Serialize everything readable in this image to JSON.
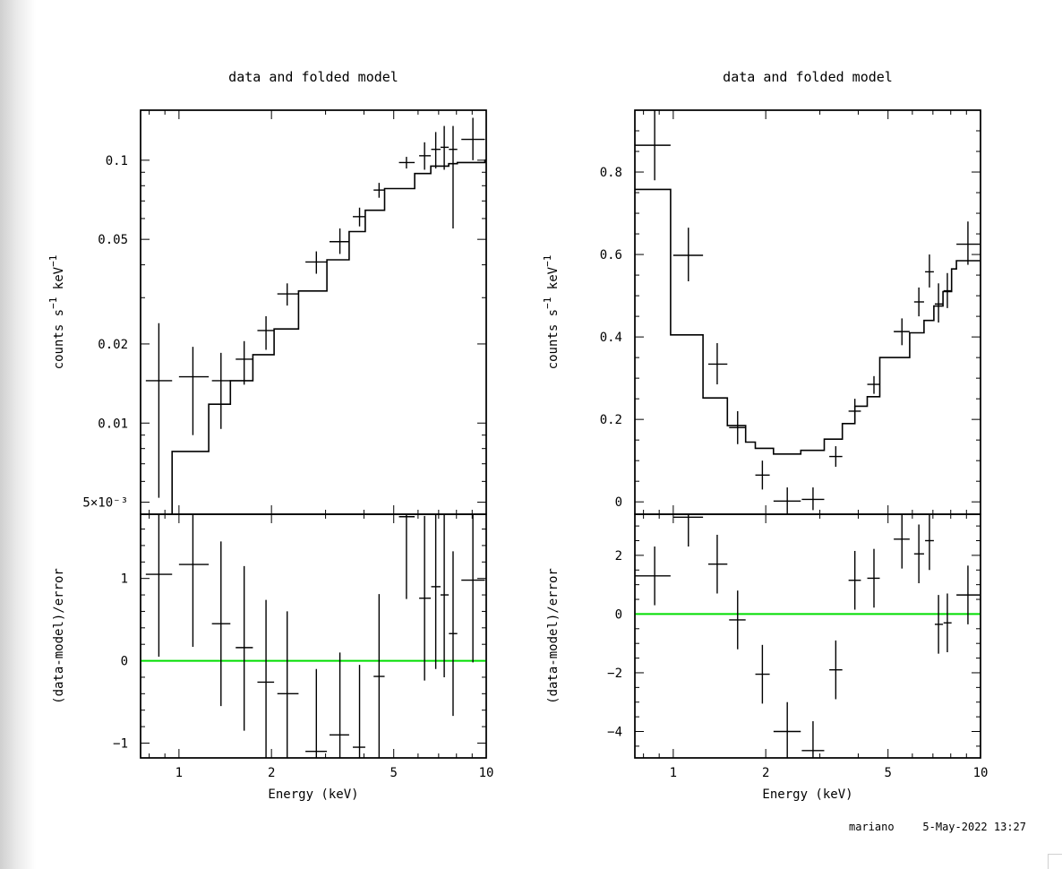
{
  "footer": {
    "user": "mariano",
    "timestamp": "5-May-2022 13:27"
  },
  "colors": {
    "axis": "#000000",
    "data": "#000000",
    "model": "#000000",
    "zero_line": "#00dd00"
  },
  "chart_data": [
    {
      "panel": "left",
      "type": "line",
      "title": "data and folded model",
      "xlabel": "Energy (keV)",
      "xscale": "log",
      "xlim": [
        0.75,
        10
      ],
      "xticklabels": [
        "1",
        "2",
        "5",
        "10"
      ],
      "top": {
        "ylabel": "counts s^-1 keV^-1",
        "yscale": "log",
        "ylim": [
          0.0045,
          0.155
        ],
        "yticklabels": [
          "5×10⁻³",
          "0.01",
          "0.02",
          "0.05",
          "0.1"
        ],
        "data": [
          {
            "x": 0.86,
            "xerr": [
              0.78,
              0.95
            ],
            "y": 0.0145,
            "yerr": [
              0.0052,
              0.024
            ]
          },
          {
            "x": 1.11,
            "xerr": [
              1.0,
              1.25
            ],
            "y": 0.015,
            "yerr": [
              0.009,
              0.0195
            ]
          },
          {
            "x": 1.37,
            "xerr": [
              1.28,
              1.47
            ],
            "y": 0.0145,
            "yerr": [
              0.0095,
              0.0185
            ]
          },
          {
            "x": 1.63,
            "xerr": [
              1.53,
              1.74
            ],
            "y": 0.0175,
            "yerr": [
              0.014,
              0.0205
            ]
          },
          {
            "x": 1.92,
            "xerr": [
              1.8,
              2.04
            ],
            "y": 0.0225,
            "yerr": [
              0.019,
              0.0255
            ]
          },
          {
            "x": 2.25,
            "xerr": [
              2.09,
              2.45
            ],
            "y": 0.031,
            "yerr": [
              0.028,
              0.034
            ]
          },
          {
            "x": 2.8,
            "xerr": [
              2.58,
              3.03
            ],
            "y": 0.041,
            "yerr": [
              0.037,
              0.045
            ]
          },
          {
            "x": 3.34,
            "xerr": [
              3.09,
              3.58
            ],
            "y": 0.049,
            "yerr": [
              0.044,
              0.055
            ]
          },
          {
            "x": 3.87,
            "xerr": [
              3.68,
              4.04
            ],
            "y": 0.061,
            "yerr": [
              0.056,
              0.066
            ]
          },
          {
            "x": 4.48,
            "xerr": [
              4.3,
              4.67
            ],
            "y": 0.077,
            "yerr": [
              0.072,
              0.082
            ]
          },
          {
            "x": 5.5,
            "xerr": [
              5.2,
              5.85
            ],
            "y": 0.098,
            "yerr": [
              0.093,
              0.103
            ]
          },
          {
            "x": 6.3,
            "xerr": [
              6.05,
              6.6
            ],
            "y": 0.104,
            "yerr": [
              0.092,
              0.117
            ]
          },
          {
            "x": 6.85,
            "xerr": [
              6.62,
              7.1
            ],
            "y": 0.11,
            "yerr": [
              0.093,
              0.128
            ]
          },
          {
            "x": 7.3,
            "xerr": [
              7.1,
              7.55
            ],
            "y": 0.112,
            "yerr": [
              0.092,
              0.135
            ]
          },
          {
            "x": 7.8,
            "xerr": [
              7.56,
              8.05
            ],
            "y": 0.11,
            "yerr": [
              0.055,
              0.135
            ]
          },
          {
            "x": 9.05,
            "xerr": [
              8.3,
              9.9
            ],
            "y": 0.12,
            "yerr": [
              0.1,
              0.145
            ]
          }
        ],
        "model": {
          "edges": [
            0.75,
            0.85,
            0.95,
            1.25,
            1.47,
            1.74,
            2.04,
            2.45,
            3.03,
            3.58,
            4.04,
            4.67,
            5.85,
            6.6,
            7.55,
            8.05,
            9.9,
            10
          ],
          "values": [
            0.0042,
            0.0042,
            0.0078,
            0.0118,
            0.0145,
            0.0182,
            0.0228,
            0.0318,
            0.0418,
            0.0535,
            0.0645,
            0.078,
            0.089,
            0.095,
            0.097,
            0.098,
            0.1
          ]
        }
      },
      "bottom": {
        "ylabel": "(data-model)/error",
        "ylim": [
          -1.18,
          1.78
        ],
        "yticklabels": [
          "−1",
          "0",
          "1"
        ],
        "zero_line": 0,
        "data": [
          {
            "x": 0.86,
            "xerr": [
              0.78,
              0.95
            ],
            "y": 1.05,
            "yerr": [
              0.05,
              2.0
            ]
          },
          {
            "x": 1.11,
            "xerr": [
              1.0,
              1.25
            ],
            "y": 1.17,
            "yerr": [
              0.17,
              2.0
            ]
          },
          {
            "x": 1.37,
            "xerr": [
              1.28,
              1.47
            ],
            "y": 0.45,
            "yerr": [
              -0.55,
              1.45
            ]
          },
          {
            "x": 1.63,
            "xerr": [
              1.53,
              1.74
            ],
            "y": 0.16,
            "yerr": [
              -0.85,
              1.15
            ]
          },
          {
            "x": 1.92,
            "xerr": [
              1.8,
              2.04
            ],
            "y": -0.26,
            "yerr": [
              -1.25,
              0.74
            ]
          },
          {
            "x": 2.25,
            "xerr": [
              2.09,
              2.45
            ],
            "y": -0.4,
            "yerr": [
              -1.4,
              0.6
            ]
          },
          {
            "x": 2.8,
            "xerr": [
              2.58,
              3.03
            ],
            "y": -1.1,
            "yerr": [
              -2.1,
              -0.1
            ]
          },
          {
            "x": 3.34,
            "xerr": [
              3.09,
              3.58
            ],
            "y": -0.9,
            "yerr": [
              -1.9,
              0.1
            ]
          },
          {
            "x": 3.87,
            "xerr": [
              3.68,
              4.04
            ],
            "y": -1.05,
            "yerr": [
              -2.05,
              -0.05
            ]
          },
          {
            "x": 4.48,
            "xerr": [
              4.3,
              4.67
            ],
            "y": -0.19,
            "yerr": [
              -1.19,
              0.81
            ]
          },
          {
            "x": 5.5,
            "xerr": [
              5.2,
              5.85
            ],
            "y": 1.75,
            "yerr": [
              0.75,
              2.75
            ]
          },
          {
            "x": 6.3,
            "xerr": [
              6.05,
              6.6
            ],
            "y": 0.76,
            "yerr": [
              -0.24,
              1.76
            ]
          },
          {
            "x": 6.85,
            "xerr": [
              6.62,
              7.1
            ],
            "y": 0.9,
            "yerr": [
              -0.1,
              1.9
            ]
          },
          {
            "x": 7.3,
            "xerr": [
              7.1,
              7.55
            ],
            "y": 0.8,
            "yerr": [
              -0.2,
              1.8
            ]
          },
          {
            "x": 7.8,
            "xerr": [
              7.56,
              8.05
            ],
            "y": 0.33,
            "yerr": [
              -0.67,
              1.33
            ]
          },
          {
            "x": 9.05,
            "xerr": [
              8.3,
              9.9
            ],
            "y": 0.98,
            "yerr": [
              -0.02,
              1.98
            ]
          }
        ]
      }
    },
    {
      "panel": "right",
      "type": "line",
      "title": "data and folded model",
      "xlabel": "Energy (keV)",
      "xscale": "log",
      "xlim": [
        0.75,
        10
      ],
      "xticklabels": [
        "1",
        "2",
        "5",
        "10"
      ],
      "top": {
        "ylabel": "counts s^-1 keV^-1",
        "yscale": "linear",
        "ylim": [
          -0.03,
          0.95
        ],
        "yticklabels": [
          "0",
          "0.2",
          "0.4",
          "0.6",
          "0.8"
        ],
        "data": [
          {
            "x": 0.87,
            "xerr": [
              0.75,
              0.98
            ],
            "y": 0.865,
            "yerr": [
              0.78,
              0.95
            ]
          },
          {
            "x": 1.12,
            "xerr": [
              1.0,
              1.25
            ],
            "y": 0.598,
            "yerr": [
              0.535,
              0.665
            ]
          },
          {
            "x": 1.39,
            "xerr": [
              1.3,
              1.5
            ],
            "y": 0.334,
            "yerr": [
              0.285,
              0.385
            ]
          },
          {
            "x": 1.62,
            "xerr": [
              1.52,
              1.72
            ],
            "y": 0.18,
            "yerr": [
              0.14,
              0.22
            ]
          },
          {
            "x": 1.95,
            "xerr": [
              1.85,
              2.06
            ],
            "y": 0.065,
            "yerr": [
              0.03,
              0.1
            ]
          },
          {
            "x": 2.35,
            "xerr": [
              2.12,
              2.6
            ],
            "y": 0.002,
            "yerr": [
              -0.03,
              0.035
            ]
          },
          {
            "x": 2.85,
            "xerr": [
              2.62,
              3.1
            ],
            "y": 0.006,
            "yerr": [
              -0.02,
              0.035
            ]
          },
          {
            "x": 3.38,
            "xerr": [
              3.22,
              3.55
            ],
            "y": 0.11,
            "yerr": [
              0.085,
              0.135
            ]
          },
          {
            "x": 3.9,
            "xerr": [
              3.72,
              4.08
            ],
            "y": 0.22,
            "yerr": [
              0.19,
              0.25
            ]
          },
          {
            "x": 4.5,
            "xerr": [
              4.28,
              4.7
            ],
            "y": 0.285,
            "yerr": [
              0.262,
              0.305
            ]
          },
          {
            "x": 5.55,
            "xerr": [
              5.22,
              5.88
            ],
            "y": 0.413,
            "yerr": [
              0.38,
              0.445
            ]
          },
          {
            "x": 6.3,
            "xerr": [
              6.08,
              6.55
            ],
            "y": 0.485,
            "yerr": [
              0.45,
              0.52
            ]
          },
          {
            "x": 6.82,
            "xerr": [
              6.6,
              7.05
            ],
            "y": 0.558,
            "yerr": [
              0.52,
              0.6
            ]
          },
          {
            "x": 7.3,
            "xerr": [
              7.1,
              7.55
            ],
            "y": 0.48,
            "yerr": [
              0.435,
              0.53
            ]
          },
          {
            "x": 7.8,
            "xerr": [
              7.58,
              8.05
            ],
            "y": 0.512,
            "yerr": [
              0.47,
              0.555
            ]
          },
          {
            "x": 9.1,
            "xerr": [
              8.35,
              9.95
            ],
            "y": 0.625,
            "yerr": [
              0.575,
              0.68
            ]
          }
        ],
        "model": {
          "edges": [
            0.75,
            0.98,
            1.25,
            1.5,
            1.72,
            1.85,
            2.12,
            2.6,
            3.1,
            3.55,
            3.9,
            4.28,
            4.7,
            5.88,
            6.55,
            7.05,
            7.55,
            8.05,
            8.35,
            9.95
          ],
          "values": [
            0.758,
            0.405,
            0.252,
            0.185,
            0.145,
            0.13,
            0.116,
            0.125,
            0.152,
            0.19,
            0.232,
            0.255,
            0.35,
            0.41,
            0.44,
            0.475,
            0.51,
            0.565,
            0.585
          ]
        }
      },
      "bottom": {
        "ylabel": "(data-model)/error",
        "ylim": [
          -4.9,
          3.4
        ],
        "yticklabels": [
          "−4",
          "−2",
          "0",
          "2"
        ],
        "zero_line": 0,
        "data": [
          {
            "x": 0.87,
            "xerr": [
              0.75,
              0.98
            ],
            "y": 1.3,
            "yerr": [
              0.3,
              2.3
            ]
          },
          {
            "x": 1.12,
            "xerr": [
              1.0,
              1.25
            ],
            "y": 3.3,
            "yerr": [
              2.3,
              4.3
            ]
          },
          {
            "x": 1.39,
            "xerr": [
              1.3,
              1.5
            ],
            "y": 1.7,
            "yerr": [
              0.7,
              2.7
            ]
          },
          {
            "x": 1.62,
            "xerr": [
              1.52,
              1.72
            ],
            "y": -0.2,
            "yerr": [
              -1.2,
              0.8
            ]
          },
          {
            "x": 1.95,
            "xerr": [
              1.85,
              2.06
            ],
            "y": -2.05,
            "yerr": [
              -3.05,
              -1.05
            ]
          },
          {
            "x": 2.35,
            "xerr": [
              2.12,
              2.6
            ],
            "y": -4.0,
            "yerr": [
              -5.0,
              -3.0
            ]
          },
          {
            "x": 2.85,
            "xerr": [
              2.62,
              3.1
            ],
            "y": -4.65,
            "yerr": [
              -5.65,
              -3.65
            ]
          },
          {
            "x": 3.38,
            "xerr": [
              3.22,
              3.55
            ],
            "y": -1.9,
            "yerr": [
              -2.9,
              -0.9
            ]
          },
          {
            "x": 3.9,
            "xerr": [
              3.72,
              4.08
            ],
            "y": 1.15,
            "yerr": [
              0.15,
              2.15
            ]
          },
          {
            "x": 4.5,
            "xerr": [
              4.28,
              4.7
            ],
            "y": 1.22,
            "yerr": [
              0.22,
              2.22
            ]
          },
          {
            "x": 5.55,
            "xerr": [
              5.22,
              5.88
            ],
            "y": 2.55,
            "yerr": [
              1.55,
              3.55
            ]
          },
          {
            "x": 6.3,
            "xerr": [
              6.08,
              6.55
            ],
            "y": 2.05,
            "yerr": [
              1.05,
              3.05
            ]
          },
          {
            "x": 6.82,
            "xerr": [
              6.6,
              7.05
            ],
            "y": 2.5,
            "yerr": [
              1.5,
              3.5
            ]
          },
          {
            "x": 7.3,
            "xerr": [
              7.1,
              7.55
            ],
            "y": -0.35,
            "yerr": [
              -1.35,
              0.65
            ]
          },
          {
            "x": 7.8,
            "xerr": [
              7.58,
              8.05
            ],
            "y": -0.3,
            "yerr": [
              -1.3,
              0.7
            ]
          },
          {
            "x": 9.1,
            "xerr": [
              8.35,
              9.95
            ],
            "y": 0.65,
            "yerr": [
              -0.35,
              1.65
            ]
          }
        ]
      }
    }
  ]
}
